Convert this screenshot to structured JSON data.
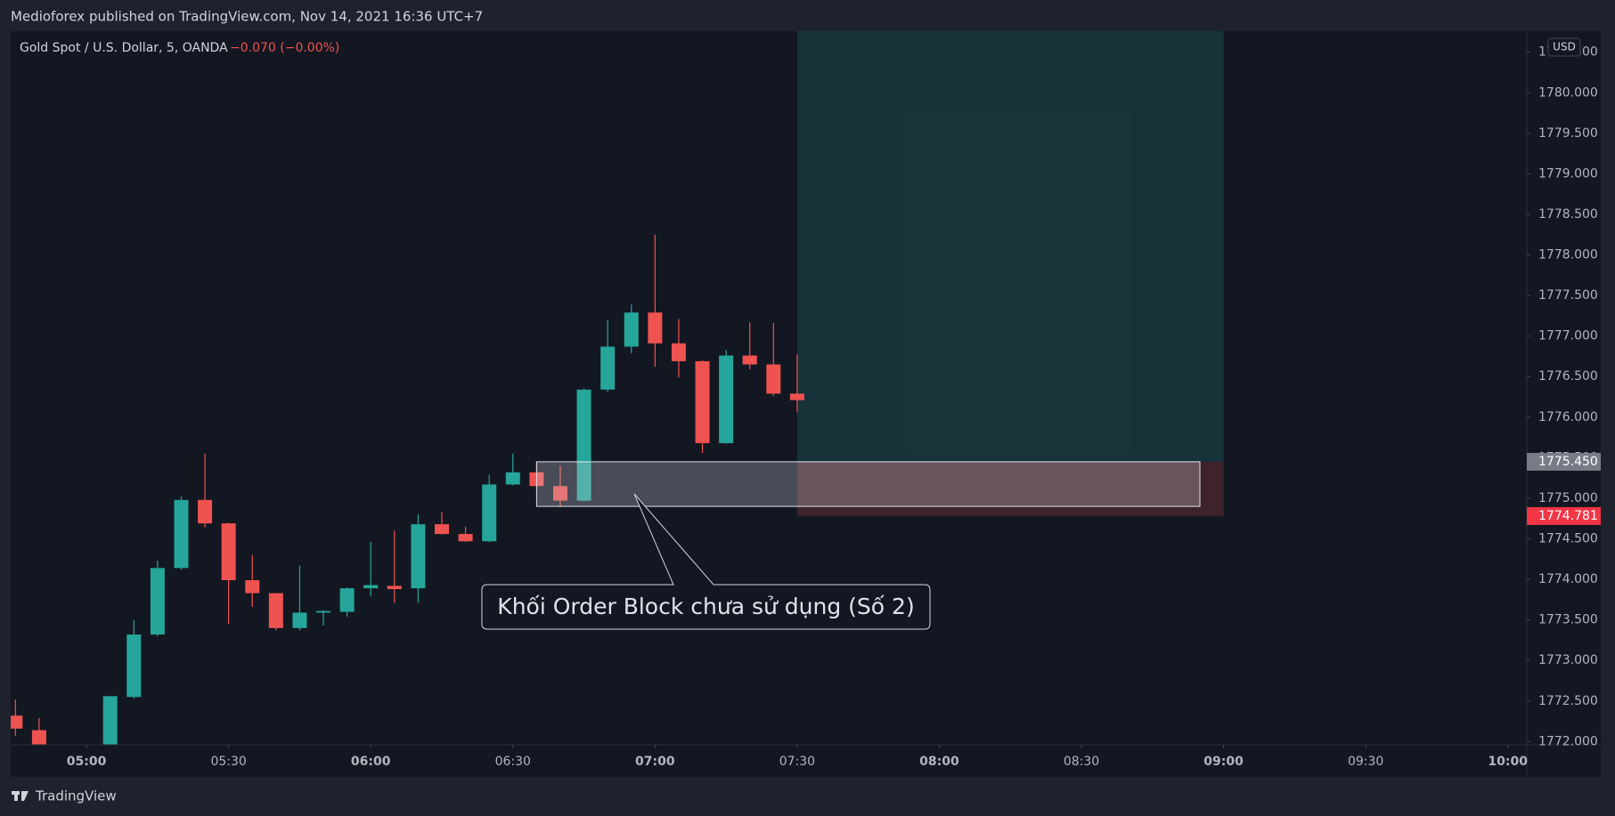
{
  "page": {
    "publisher_line": "Medioforex published on TradingView.com, Nov 14, 2021 16:36 UTC+7",
    "brand": "TradingView"
  },
  "chart_data": {
    "type": "candlestick",
    "title": "Gold Spot / U.S. Dollar, 5, OANDA",
    "change": "−0.070 (−0.00%)",
    "currency": "USD",
    "up_color": "#26a69a",
    "down_color": "#ef5350",
    "grid": false,
    "xlim": [
      "04:44",
      "10:04"
    ],
    "xticks": [
      "05:00",
      "05:30",
      "06:00",
      "06:30",
      "07:00",
      "07:30",
      "08:00",
      "08:30",
      "09:00",
      "09:30",
      "10:00"
    ],
    "ylim": [
      1771.96,
      1780.76
    ],
    "yticks": [
      {
        "value": 1772,
        "label": "1772.000"
      },
      {
        "value": 1772.5,
        "label": "1772.500"
      },
      {
        "value": 1773,
        "label": "1773.000"
      },
      {
        "value": 1773.5,
        "label": "1773.500"
      },
      {
        "value": 1774,
        "label": "1774.000"
      },
      {
        "value": 1774.5,
        "label": "1774.500"
      },
      {
        "value": 1775,
        "label": "1775.000"
      },
      {
        "value": 1775.5,
        "label": "1775.500"
      },
      {
        "value": 1776,
        "label": "1776.000"
      },
      {
        "value": 1776.5,
        "label": "1776.500"
      },
      {
        "value": 1777,
        "label": "1777.000"
      },
      {
        "value": 1777.5,
        "label": "1777.500"
      },
      {
        "value": 1778,
        "label": "1778.000"
      },
      {
        "value": 1778.5,
        "label": "1778.500"
      },
      {
        "value": 1779,
        "label": "1779.000"
      },
      {
        "value": 1779.5,
        "label": "1779.500"
      },
      {
        "value": 1780,
        "label": "1780.000"
      },
      {
        "value": 1780.5,
        "label": "1780.500"
      }
    ],
    "x": [
      "04:45",
      "04:50",
      "05:05",
      "05:10",
      "05:15",
      "05:20",
      "05:25",
      "05:30",
      "05:35",
      "05:40",
      "05:45",
      "05:50",
      "05:55",
      "06:00",
      "06:05",
      "06:10",
      "06:15",
      "06:20",
      "06:25",
      "06:30",
      "06:35",
      "06:40",
      "06:45",
      "06:50",
      "06:55",
      "07:00",
      "07:05",
      "07:10",
      "07:15",
      "07:20",
      "07:25",
      "07:30"
    ],
    "open": [
      1772.32,
      1772.14,
      1771.9,
      1772.55,
      1773.32,
      1774.14,
      1774.98,
      1774.69,
      1773.99,
      1773.83,
      1773.4,
      1773.59,
      1773.6,
      1773.89,
      1773.92,
      1773.89,
      1774.68,
      1774.56,
      1774.47,
      1775.17,
      1775.32,
      1775.15,
      1774.97,
      1776.34,
      1776.87,
      1777.29,
      1776.91,
      1776.69,
      1775.68,
      1776.76,
      1776.65,
      1776.29
    ],
    "high": [
      1772.52,
      1772.29,
      1772.56,
      1773.5,
      1774.23,
      1775.02,
      1775.55,
      1774.7,
      1774.3,
      1773.83,
      1774.17,
      1773.62,
      1773.9,
      1774.46,
      1774.6,
      1774.8,
      1774.83,
      1774.65,
      1775.29,
      1775.55,
      1775.45,
      1775.4,
      1776.35,
      1777.2,
      1777.39,
      1778.25,
      1777.21,
      1776.7,
      1776.83,
      1777.17,
      1777.16,
      1776.77
    ],
    "low": [
      1772.07,
      1771.85,
      1771.8,
      1772.53,
      1773.3,
      1774.12,
      1774.64,
      1773.45,
      1773.66,
      1773.37,
      1773.37,
      1773.43,
      1773.54,
      1773.79,
      1773.71,
      1773.71,
      1774.55,
      1774.46,
      1774.46,
      1775.16,
      1775.12,
      1774.89,
      1774.96,
      1776.31,
      1776.79,
      1776.62,
      1776.49,
      1775.56,
      1775.67,
      1776.59,
      1776.26,
      1776.06
    ],
    "close": [
      1772.16,
      1771.9,
      1772.56,
      1773.32,
      1774.14,
      1774.98,
      1774.69,
      1773.99,
      1773.83,
      1773.4,
      1773.59,
      1773.61,
      1773.89,
      1773.93,
      1773.88,
      1774.68,
      1774.56,
      1774.47,
      1775.17,
      1775.32,
      1775.15,
      1774.97,
      1776.34,
      1776.87,
      1777.29,
      1776.91,
      1776.69,
      1775.68,
      1776.76,
      1776.65,
      1776.29,
      1776.21
    ],
    "position": {
      "start": "07:30",
      "end": "09:00",
      "target": 1781,
      "entry": {
        "value": 1775.45,
        "label": "1775.450"
      },
      "stop": {
        "value": 1774.781,
        "label": "1774.781"
      }
    },
    "order_block": {
      "label": "Khối Order Block chưa sử dụng (Số 2)",
      "start": "06:35",
      "end": "08:55",
      "top": 1775.45,
      "bottom": 1774.9
    }
  }
}
